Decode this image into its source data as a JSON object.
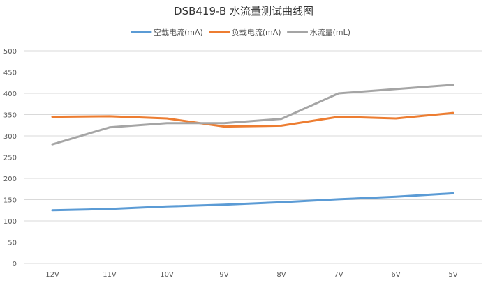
{
  "chart_data": {
    "type": "line",
    "title": "DSB419-B 水流量测试曲线图",
    "xlabel": "",
    "ylabel": "",
    "categories": [
      "12V",
      "11V",
      "10V",
      "9V",
      "8V",
      "7V",
      "6V",
      "5V"
    ],
    "ylim": [
      0,
      500
    ],
    "yticks": [
      0,
      50,
      100,
      150,
      200,
      250,
      300,
      350,
      400,
      450,
      500
    ],
    "grid": true,
    "legend_position": "top",
    "series": [
      {
        "name": "空载电流(mA)",
        "color": "#5b9bd5",
        "values": [
          125,
          128,
          134,
          138,
          144,
          151,
          157,
          165
        ]
      },
      {
        "name": "负载电流(mA)",
        "color": "#ed7d31",
        "values": [
          345,
          346,
          341,
          322,
          324,
          345,
          341,
          354
        ]
      },
      {
        "name": "水流量(mL)",
        "color": "#a5a5a5",
        "values": [
          280,
          320,
          330,
          330,
          340,
          400,
          410,
          420
        ]
      }
    ]
  }
}
